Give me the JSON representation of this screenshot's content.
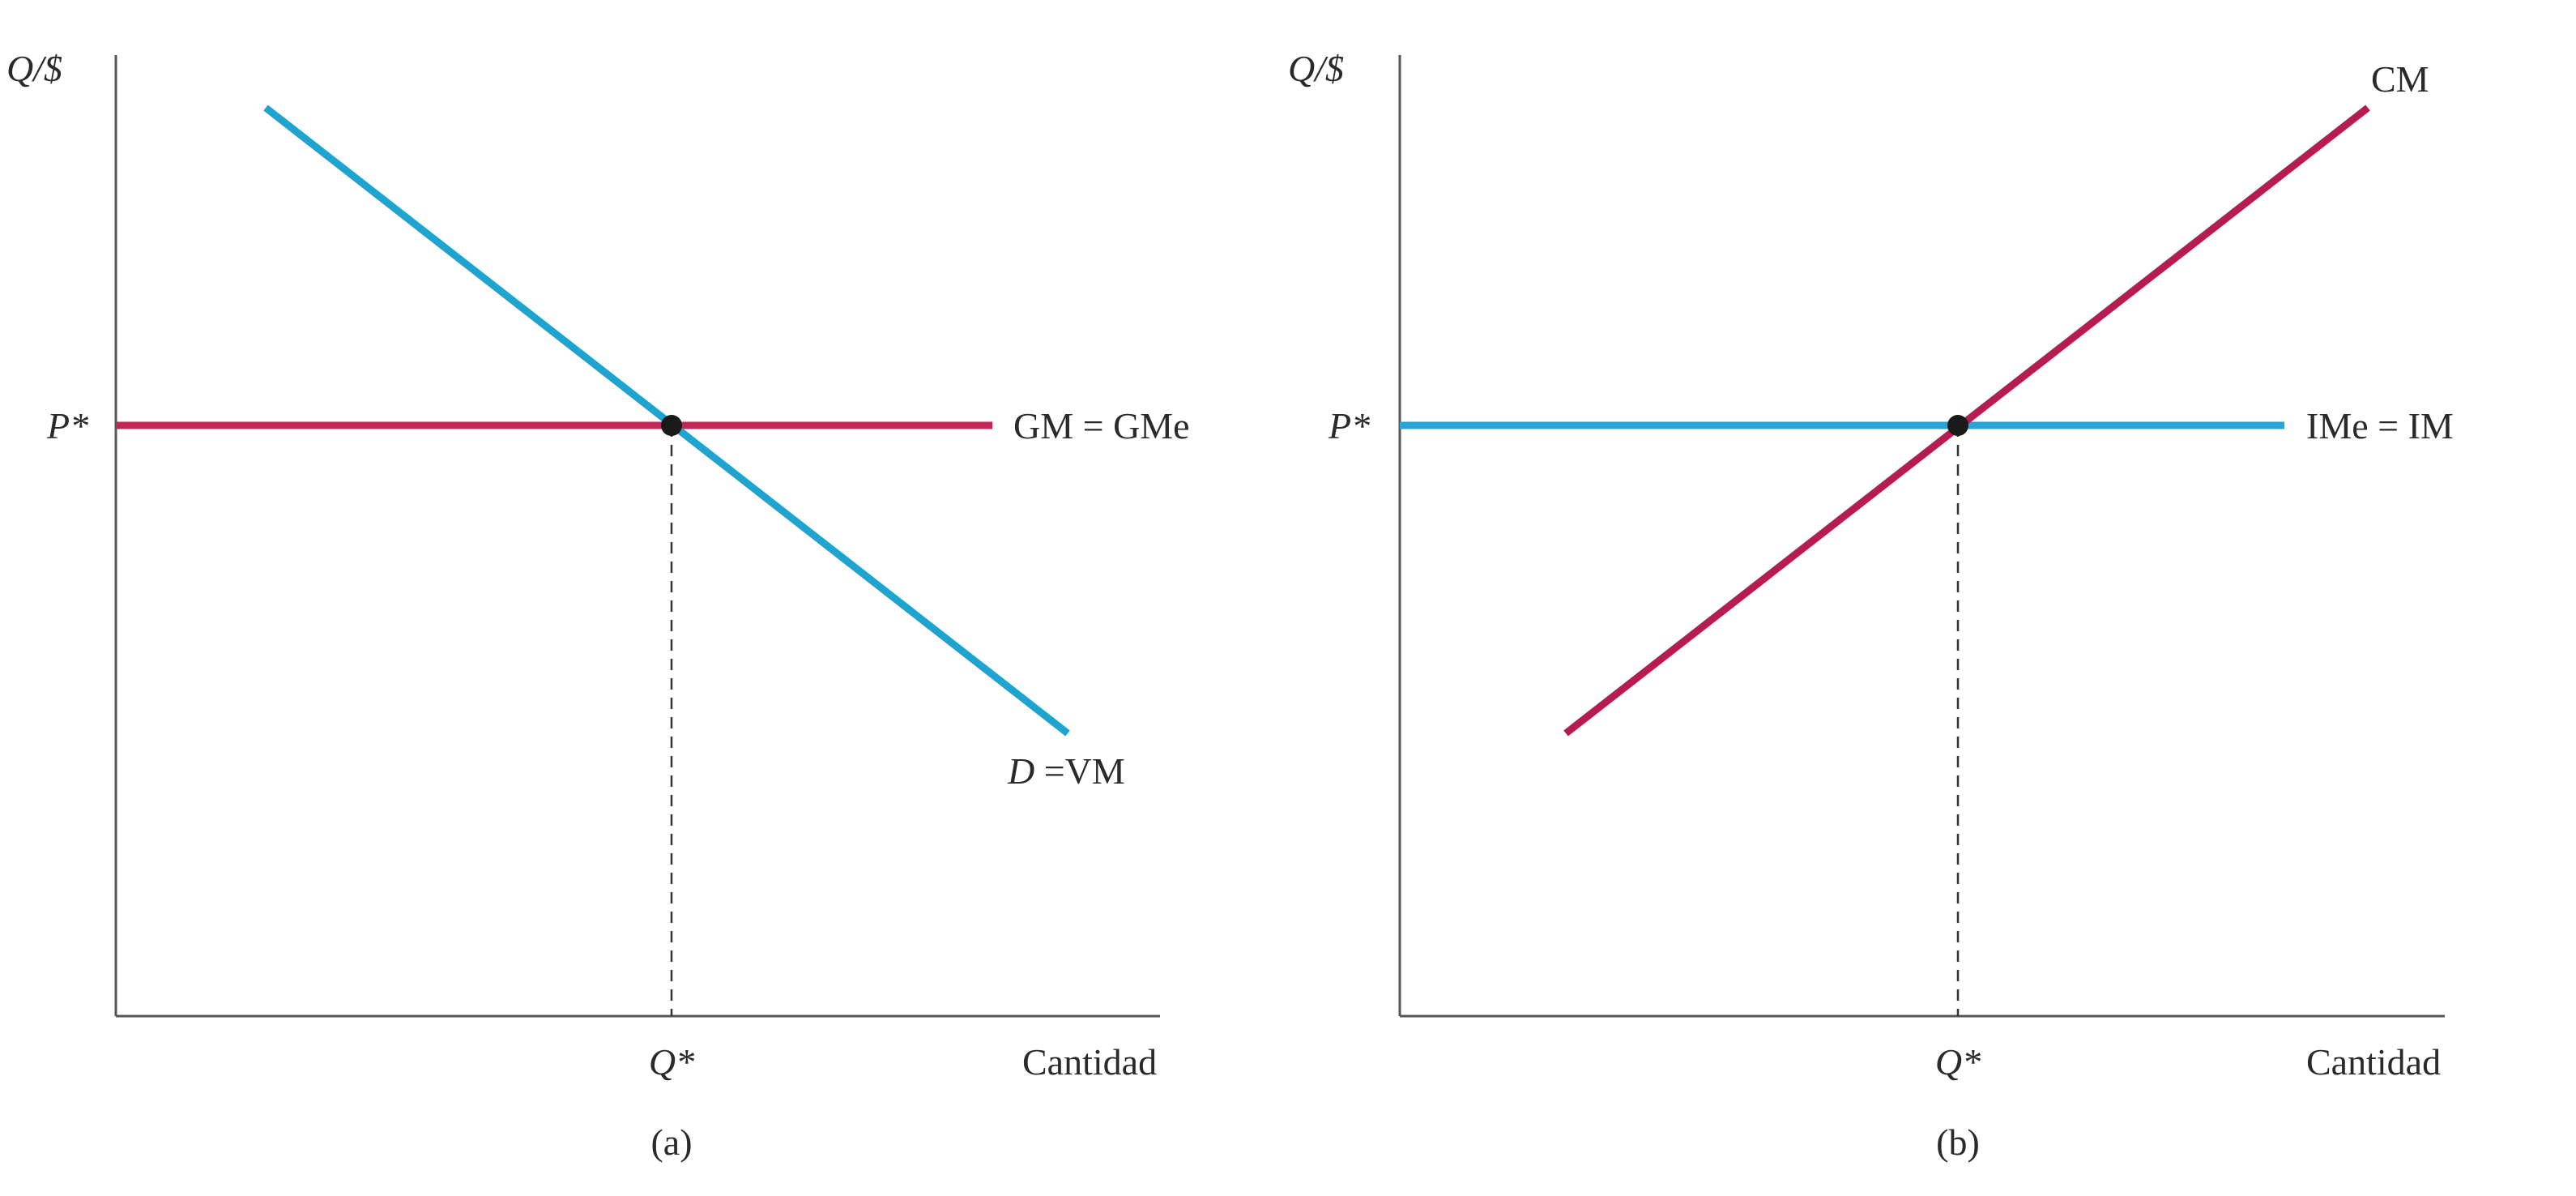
{
  "charts": [
    {
      "id": "a",
      "caption": "(a)",
      "ylabel": "Q/$",
      "xlabel": "Cantidad",
      "pstar": "P*",
      "qstar": "Q*",
      "horizontal_label": "GM = GMe",
      "curve_label_italic": "D",
      "curve_label_rest": " =VM",
      "horizontal_color": "#c0285a",
      "curve_color": "#1fa3cf"
    },
    {
      "id": "b",
      "caption": "(b)",
      "ylabel": "Q/$",
      "xlabel": "Cantidad",
      "pstar": "P*",
      "qstar": "Q*",
      "horizontal_label": "IMe = IM",
      "curve_label": "CM",
      "horizontal_color": "#2aa3d6",
      "curve_color": "#b61d4e"
    }
  ],
  "chart_data": [
    {
      "type": "line",
      "title": "(a)",
      "xlabel": "Cantidad",
      "ylabel": "Q/$",
      "xlim": [
        0,
        10
      ],
      "ylim": [
        0,
        10
      ],
      "x_ticks": [
        "Q*"
      ],
      "y_ticks": [
        "P*"
      ],
      "series": [
        {
          "name": "GM = GMe",
          "x": [
            0,
            7.85
          ],
          "y": [
            6.3,
            6.3
          ]
        },
        {
          "name": "D =VM",
          "x": [
            1.3,
            8.35
          ],
          "y": [
            9.5,
            3.0
          ]
        }
      ],
      "equilibrium": {
        "x": 4.85,
        "y": 6.3
      }
    },
    {
      "type": "line",
      "title": "(b)",
      "xlabel": "Cantidad",
      "ylabel": "Q/$",
      "xlim": [
        0,
        10
      ],
      "ylim": [
        0,
        10
      ],
      "x_ticks": [
        "Q*"
      ],
      "y_ticks": [
        "P*"
      ],
      "series": [
        {
          "name": "IMe = IM",
          "x": [
            0,
            7.7
          ],
          "y": [
            6.3,
            6.3
          ]
        },
        {
          "name": "CM",
          "x": [
            1.45,
            8.3
          ],
          "y": [
            3.0,
            9.5
          ]
        }
      ],
      "equilibrium": {
        "x": 4.85,
        "y": 6.3
      }
    }
  ]
}
